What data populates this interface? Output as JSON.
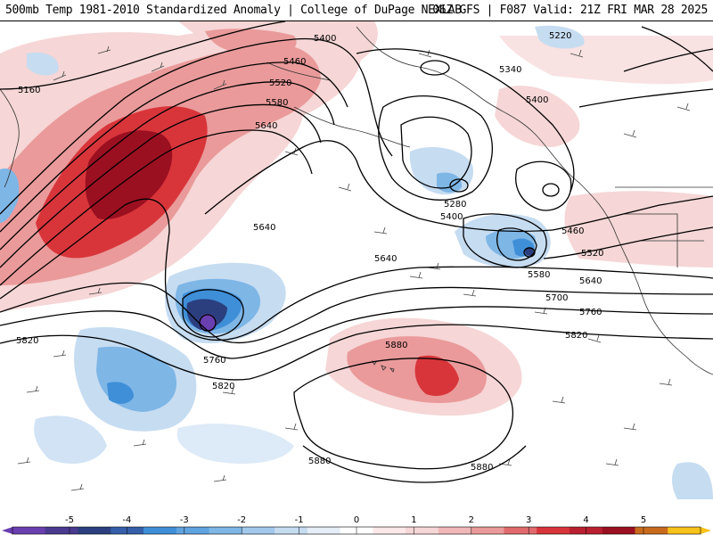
{
  "header": {
    "title_left": "500mb Temp 1981-2010 Standardized Anomaly | College of DuPage NEXLAB",
    "title_right": "06Z GFS | F087 Valid: 21Z FRI MAR 28 2025"
  },
  "contour_labels": [
    "5160",
    "5400",
    "5460",
    "5520",
    "5580",
    "5640",
    "5220",
    "5340",
    "5400",
    "5280",
    "5400",
    "5460",
    "5520",
    "5580",
    "5640",
    "5700",
    "5760",
    "5640",
    "5640",
    "5760",
    "5820",
    "5820",
    "5880",
    "5820",
    "5880",
    "5880"
  ],
  "colorbar": {
    "ticks": [
      "-5",
      "-4",
      "-3",
      "-2",
      "-1",
      "0",
      "1",
      "2",
      "3",
      "4",
      "5"
    ],
    "colors": [
      "#6a3fb0",
      "#2b3f7f",
      "#3f8fd8",
      "#7eb6e6",
      "#c6dcf1",
      "#ffffff",
      "#f6d6d6",
      "#ea9a9a",
      "#d8353b",
      "#9b1020",
      "#f7c21a"
    ]
  }
}
